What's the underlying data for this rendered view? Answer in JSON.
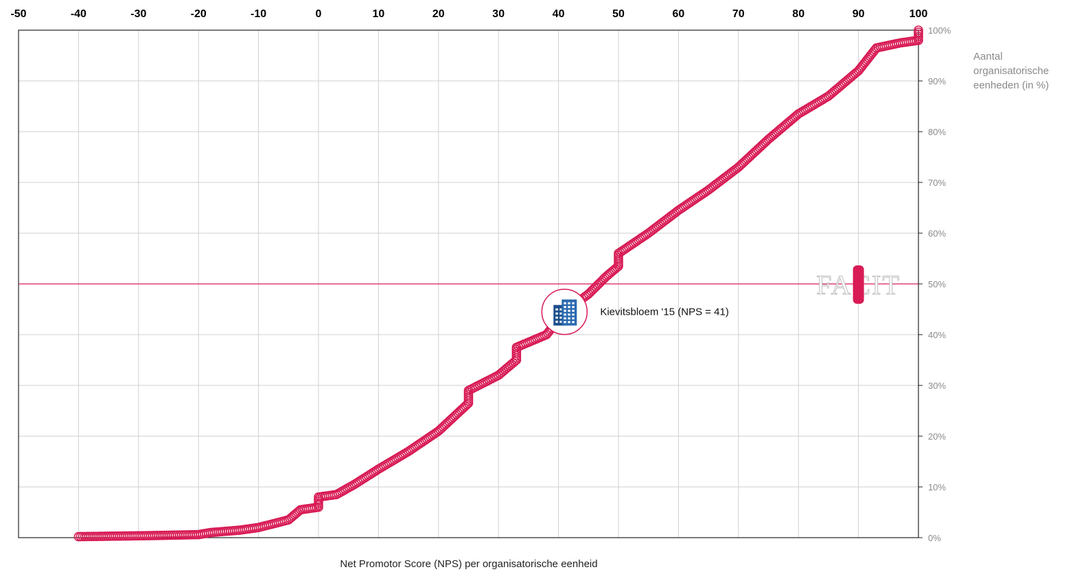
{
  "chart_data": {
    "type": "scatter",
    "xlabel": "Net Promotor Score (NPS) per organisatorische eenheid",
    "ylabel": [
      "Aantal",
      "organisatorische",
      "eenheden (in %)"
    ],
    "xlim": [
      -50,
      100
    ],
    "ylim": [
      0,
      100
    ],
    "x_ticks": [
      "-50",
      "-40",
      "-30",
      "-20",
      "-10",
      "0",
      "10",
      "20",
      "30",
      "40",
      "50",
      "60",
      "70",
      "80",
      "90",
      "100"
    ],
    "y_ticks": [
      "0%",
      "10%",
      "20%",
      "30%",
      "40%",
      "50%",
      "60%",
      "70%",
      "80%",
      "90%",
      "100%"
    ],
    "grid": true,
    "x_axis_position": "top",
    "y_axis_position": "right",
    "marker_color": "#d81b55",
    "reference_line": {
      "y": 50,
      "color": "#d81b55"
    },
    "highlight": {
      "label": "Kievitsbloem '15 (NPS = 41)",
      "x": 41,
      "y": 44.5,
      "icon": "building-icon"
    },
    "watermark": "FACIT",
    "cdf_knots": [
      [
        -40,
        0.2
      ],
      [
        -28,
        0.4
      ],
      [
        -20,
        0.6
      ],
      [
        -18,
        1.0
      ],
      [
        -13,
        1.5
      ],
      [
        -10,
        2.0
      ],
      [
        -5,
        3.5
      ],
      [
        -3,
        5.5
      ],
      [
        0,
        6.0
      ],
      [
        0,
        8.0
      ],
      [
        3,
        8.5
      ],
      [
        6,
        10.5
      ],
      [
        10,
        13.5
      ],
      [
        15,
        17.0
      ],
      [
        20,
        21.0
      ],
      [
        25,
        26.5
      ],
      [
        25,
        29.0
      ],
      [
        30,
        32.0
      ],
      [
        33,
        35.0
      ],
      [
        33,
        37.5
      ],
      [
        38,
        40.0
      ],
      [
        41,
        44.5
      ],
      [
        45,
        48.0
      ],
      [
        48,
        51.5
      ],
      [
        50,
        53.5
      ],
      [
        50,
        56.0
      ],
      [
        55,
        60.0
      ],
      [
        60,
        64.5
      ],
      [
        65,
        68.5
      ],
      [
        70,
        73.0
      ],
      [
        75,
        78.5
      ],
      [
        80,
        83.5
      ],
      [
        85,
        87.0
      ],
      [
        90,
        92.0
      ],
      [
        93,
        96.5
      ],
      [
        97,
        97.5
      ],
      [
        100,
        98.0
      ],
      [
        100,
        100.0
      ]
    ]
  }
}
